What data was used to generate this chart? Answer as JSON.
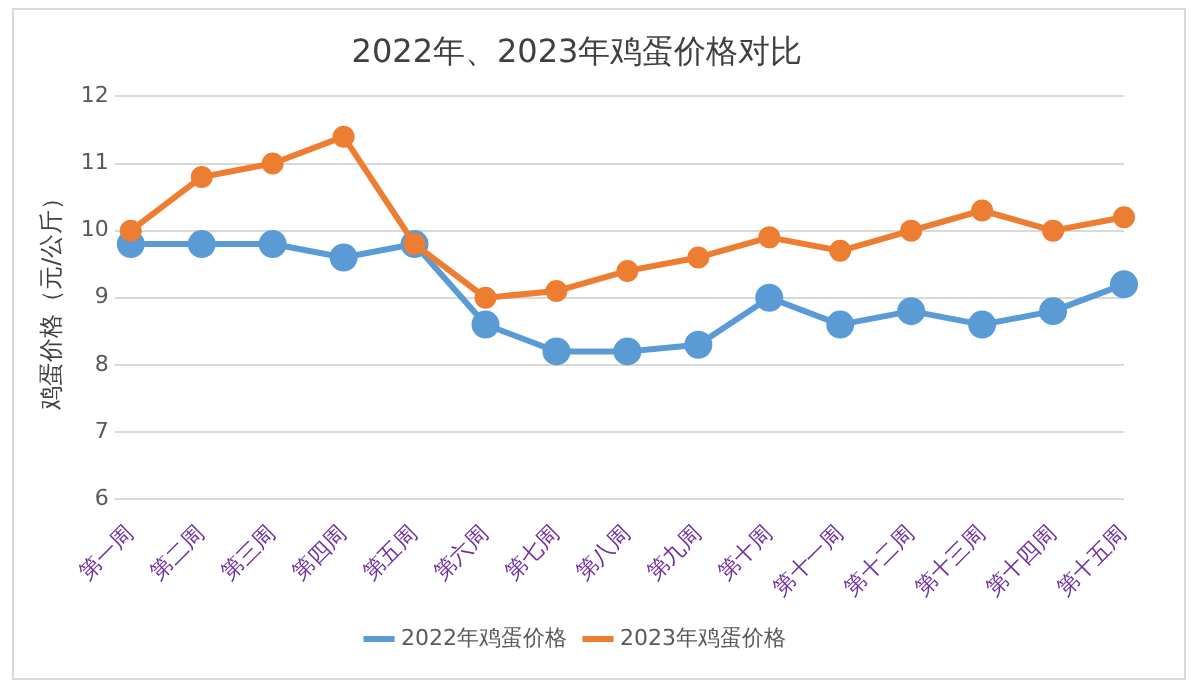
{
  "chart_data": {
    "type": "line",
    "title": "2022年、2023年鸡蛋价格对比",
    "ylabel": "鸡蛋价格（元/公斤）",
    "categories": [
      "第一周",
      "第二周",
      "第三周",
      "第四周",
      "第五周",
      "第六周",
      "第七周",
      "第八周",
      "第九周",
      "第十周",
      "第十一周",
      "第十二周",
      "第十三周",
      "第十四周",
      "第十五周"
    ],
    "series": [
      {
        "name": "2022年鸡蛋价格",
        "color": "#5b9bd5",
        "values": [
          9.8,
          9.8,
          9.8,
          9.6,
          9.8,
          8.6,
          8.2,
          8.2,
          8.3,
          9.0,
          8.6,
          8.8,
          8.6,
          8.8,
          9.2
        ]
      },
      {
        "name": "2023年鸡蛋价格",
        "color": "#ed7d31",
        "values": [
          10.0,
          10.8,
          11.0,
          11.4,
          9.8,
          9.0,
          9.1,
          9.4,
          9.6,
          9.9,
          9.7,
          10.0,
          10.3,
          10.0,
          10.2
        ]
      }
    ],
    "ylim": [
      6,
      12
    ],
    "yticks": [
      6,
      7,
      8,
      9,
      10,
      11,
      12
    ],
    "grid": "y",
    "legend": "bottom",
    "marker": "circle",
    "line_style": "solid"
  }
}
